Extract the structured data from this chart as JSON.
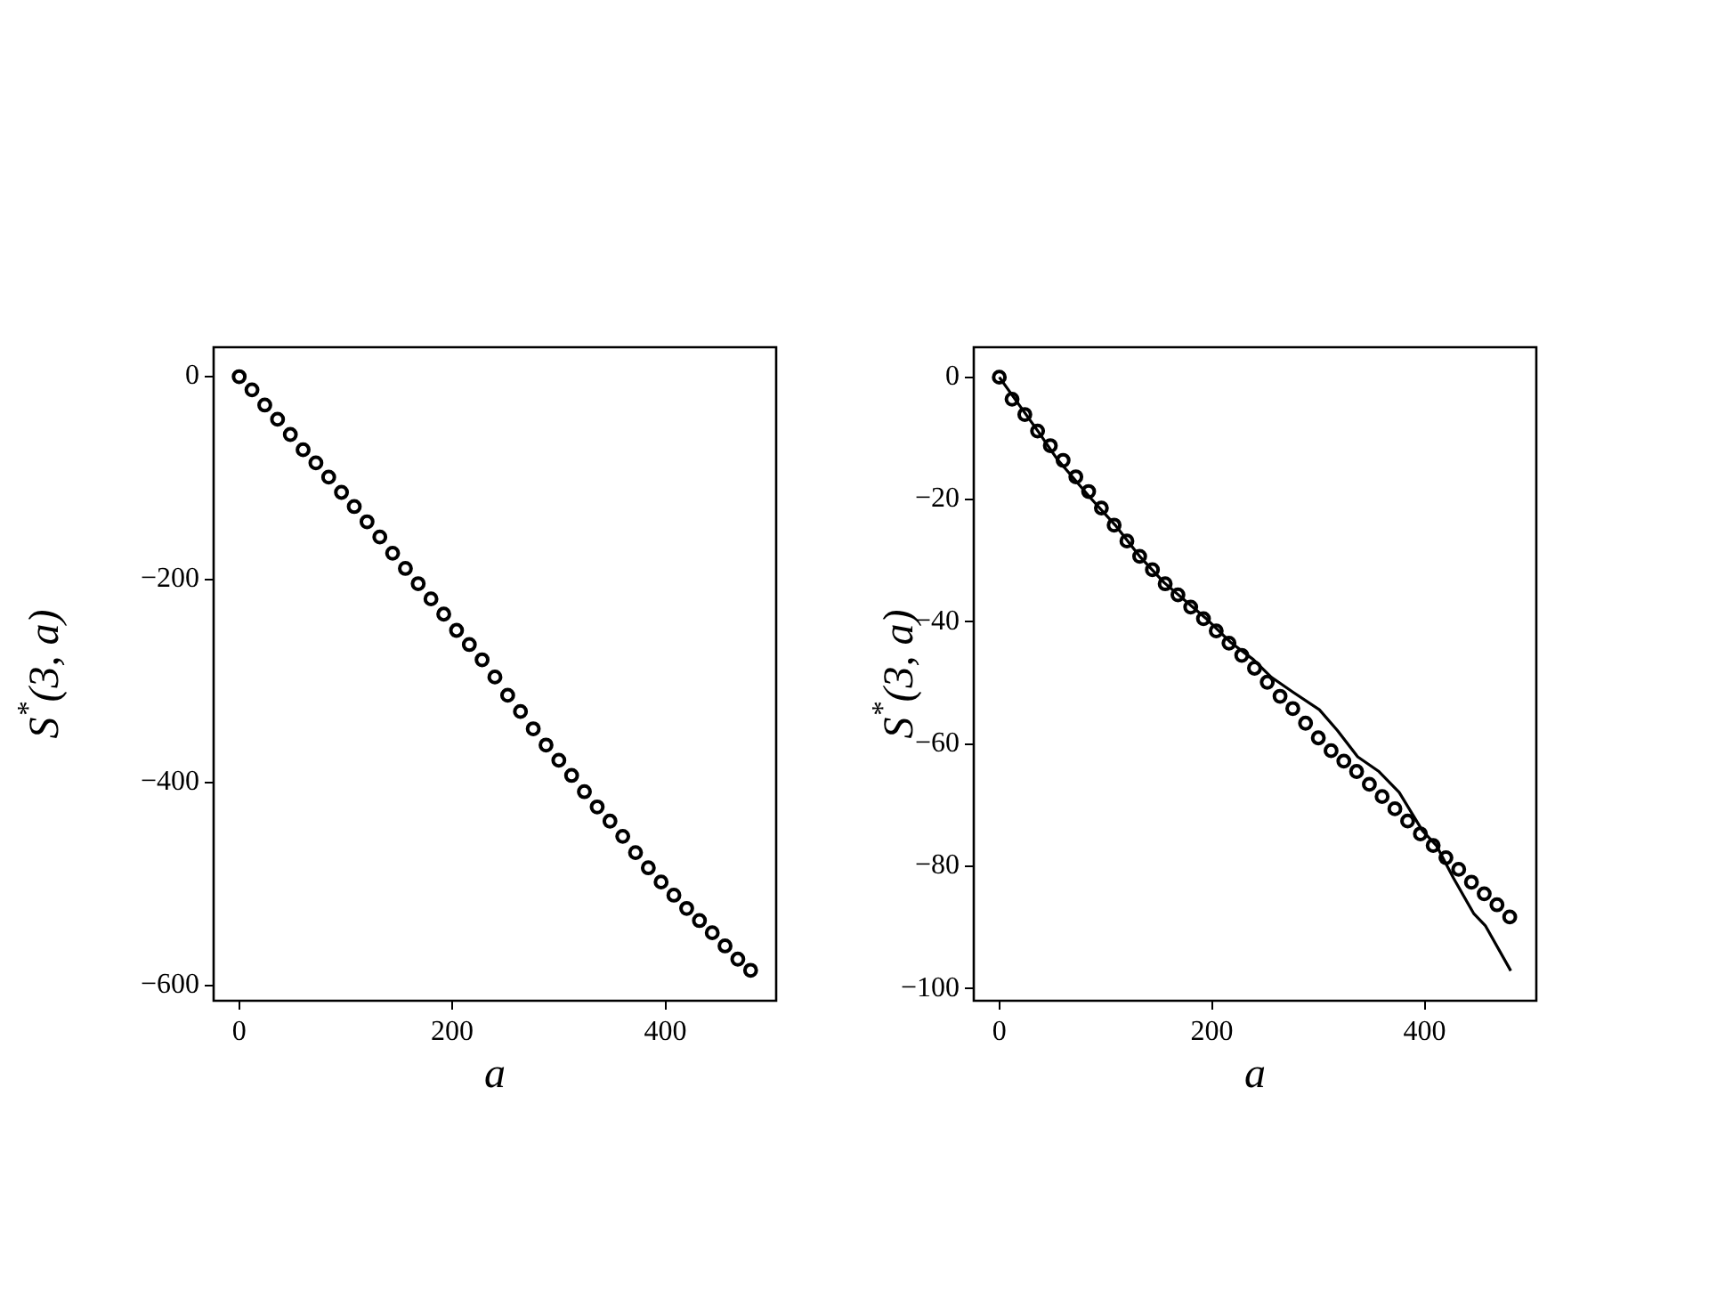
{
  "chart_data": [
    {
      "type": "scatter",
      "xlabel": "a",
      "ylabel": "S$^{*}$(3, a)",
      "marker": "circle",
      "grid": false,
      "legend": false,
      "x": [
        0,
        12,
        24,
        36,
        48,
        60,
        72,
        84,
        96,
        108,
        120,
        132,
        144,
        156,
        168,
        180,
        192,
        204,
        216,
        228,
        240,
        252,
        264,
        276,
        288,
        300,
        312,
        324,
        336,
        348,
        360,
        372,
        384,
        396,
        408,
        420,
        432,
        444,
        456,
        468,
        480
      ],
      "series": [
        {
          "color": "#000000",
          "values": [
            0,
            -13,
            -28,
            -42,
            -57,
            -72,
            -85,
            -99,
            -114,
            -128,
            -143,
            -158,
            -174,
            -189,
            -204,
            -219,
            -234,
            -250,
            -264,
            -279,
            -296,
            -314,
            -330,
            -347,
            -363,
            -378,
            -393,
            -409,
            -424,
            -438,
            -453,
            -469,
            -484,
            -498,
            -511,
            -524,
            -536,
            -548,
            -561,
            -574,
            -585
          ]
        }
      ],
      "xlim": [
        -24,
        504
      ],
      "xticks": [
        0,
        200,
        400
      ],
      "ylim": [
        -615,
        29
      ],
      "yticks": [
        -600,
        -400,
        -200,
        0
      ]
    },
    {
      "type": "scatter",
      "xlabel": "a",
      "ylabel": "S$^{*}$(3, a)",
      "marker": "circle",
      "grid": false,
      "legend": false,
      "x": [
        0,
        12,
        24,
        36,
        48,
        60,
        72,
        84,
        96,
        108,
        120,
        132,
        144,
        156,
        168,
        180,
        192,
        204,
        216,
        228,
        240,
        252,
        264,
        276,
        288,
        300,
        312,
        324,
        336,
        348,
        360,
        372,
        384,
        396,
        408,
        420,
        432,
        444,
        456,
        468,
        480
      ],
      "series": [
        {
          "color": "#000000",
          "values": [
            0,
            -3.6,
            -6.1,
            -8.8,
            -11.2,
            -13.6,
            -16.3,
            -18.7,
            -21.4,
            -24.2,
            -26.8,
            -29.3,
            -31.5,
            -33.8,
            -35.6,
            -37.6,
            -39.5,
            -41.5,
            -43.5,
            -45.5,
            -47.6,
            -49.9,
            -52.2,
            -54.2,
            -56.6,
            -59.0,
            -61.1,
            -62.8,
            -64.5,
            -66.6,
            -68.6,
            -70.6,
            -72.6,
            -74.7,
            -76.6,
            -78.6,
            -80.5,
            -82.6,
            -84.5,
            -86.3,
            -88.3
          ]
        },
        {
          "type": "line",
          "color": "#000000",
          "marker": "none",
          "line_style": "solid",
          "x": [
            0,
            37,
            54,
            85,
            110,
            132,
            155,
            194,
            217,
            239,
            256,
            276,
            301,
            318,
            337,
            357,
            376,
            398,
            411,
            427,
            446,
            457,
            481
          ],
          "values": [
            0,
            -9.0,
            -13.3,
            -19.6,
            -24.4,
            -29.3,
            -33.6,
            -39.4,
            -43.3,
            -46.2,
            -49.1,
            -51.5,
            -54.4,
            -57.8,
            -62.1,
            -64.5,
            -67.9,
            -74.2,
            -76.6,
            -81.9,
            -87.7,
            -89.7,
            -97.1
          ]
        }
      ],
      "xlim": [
        -24,
        505
      ],
      "xticks": [
        0,
        200,
        400
      ],
      "ylim": [
        -102,
        4.9
      ],
      "yticks": [
        -100,
        -80,
        -60,
        -40,
        -20,
        0
      ]
    }
  ]
}
